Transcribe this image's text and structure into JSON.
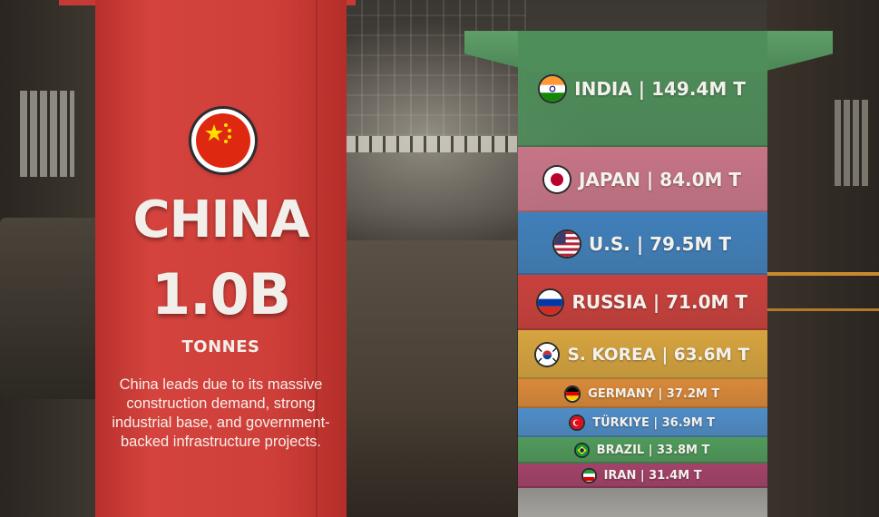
{
  "chart_data": {
    "type": "bar",
    "unit_suffix": "T",
    "leader": {
      "country": "CHINA",
      "value_label": "1.0B",
      "unit": "TONNES",
      "value": 1000000000,
      "description": "China leads due to its massive construction demand, strong industrial base, and government-backed infrastructure projects.",
      "color": "#d4433d",
      "icon": "china-flag-icon"
    },
    "categories": [
      "INDIA",
      "JAPAN",
      "U.S.",
      "RUSSIA",
      "S. KOREA",
      "GERMANY",
      "TÜRKIYE",
      "BRAZIL",
      "IRAN"
    ],
    "values": [
      149.4,
      84.0,
      79.5,
      71.0,
      63.6,
      37.2,
      36.9,
      33.8,
      31.4
    ],
    "value_labels": [
      "149.4M T",
      "84.0M T",
      "79.5M T",
      "71.0M T",
      "63.6M T",
      "37.2M T",
      "36.9M T",
      "33.8M T",
      "31.4M T"
    ],
    "colors": [
      "#4e8e5a",
      "#c67486",
      "#3f7fba",
      "#c9403c",
      "#d6a43f",
      "#d9893a",
      "#4f8dc8",
      "#4f9a5c",
      "#a3426a"
    ],
    "icons": [
      "india-flag-icon",
      "japan-flag-icon",
      "us-flag-icon",
      "russia-flag-icon",
      "south-korea-flag-icon",
      "germany-flag-icon",
      "turkiye-flag-icon",
      "brazil-flag-icon",
      "iran-flag-icon"
    ]
  }
}
